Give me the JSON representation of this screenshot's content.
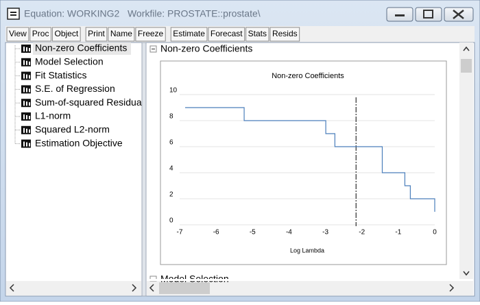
{
  "window": {
    "title": "Equation: WORKING2   Workfile: PROSTATE::prostate\\"
  },
  "toolbar": {
    "buttons": [
      "View",
      "Proc",
      "Object",
      "Print",
      "Name",
      "Freeze",
      "Estimate",
      "Forecast",
      "Stats",
      "Resids"
    ]
  },
  "tree": {
    "items": [
      "Non-zero Coefficients",
      "Model Selection",
      "Fit Statistics",
      "S.E. of Regression",
      "Sum-of-squared Residua",
      "L1-norm",
      "Squared L2-norm",
      "Estimation Objective"
    ]
  },
  "sections": [
    "Non-zero Coefficients",
    "Model Selection"
  ],
  "chart_data": {
    "type": "step",
    "title": "Non-zero Coefficients",
    "x_label": "Log Lambda",
    "x": [
      -6.85,
      -5.23,
      -2.99,
      -2.74,
      -1.44,
      -0.82,
      -0.67,
      0
    ],
    "values": [
      9,
      8,
      7,
      6,
      4,
      3,
      2,
      1
    ],
    "color": "#4a7ebb",
    "xlim": [
      -7,
      0
    ],
    "xticks": [
      -7,
      -6,
      -5,
      -4,
      -3,
      -2,
      -1,
      0
    ],
    "ylim": [
      0,
      10
    ],
    "yticks": [
      0,
      2,
      4,
      6,
      8,
      10
    ],
    "grid": true,
    "reference_line_x": -2.16
  }
}
